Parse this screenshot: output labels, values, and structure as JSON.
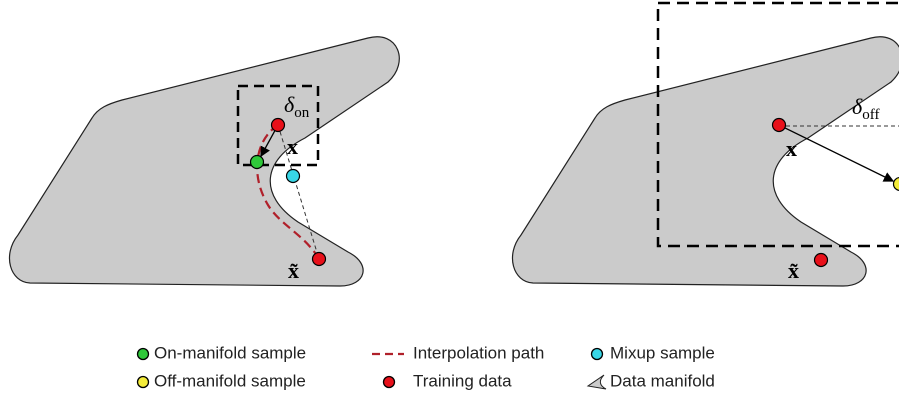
{
  "left_panel": {
    "delta_label": {
      "symbol": "δ",
      "subscript": "on"
    },
    "x_label": "x",
    "x_tilde_label": "x̃"
  },
  "right_panel": {
    "delta_label": {
      "symbol": "δ",
      "subscript": "off"
    },
    "x_label": "x",
    "x_tilde_label": "x̃"
  },
  "legend": {
    "items": [
      "On-manifold sample",
      "Interpolation path",
      "Mixup sample",
      "Off-manifold sample",
      "Training data",
      "Data manifold"
    ]
  }
}
